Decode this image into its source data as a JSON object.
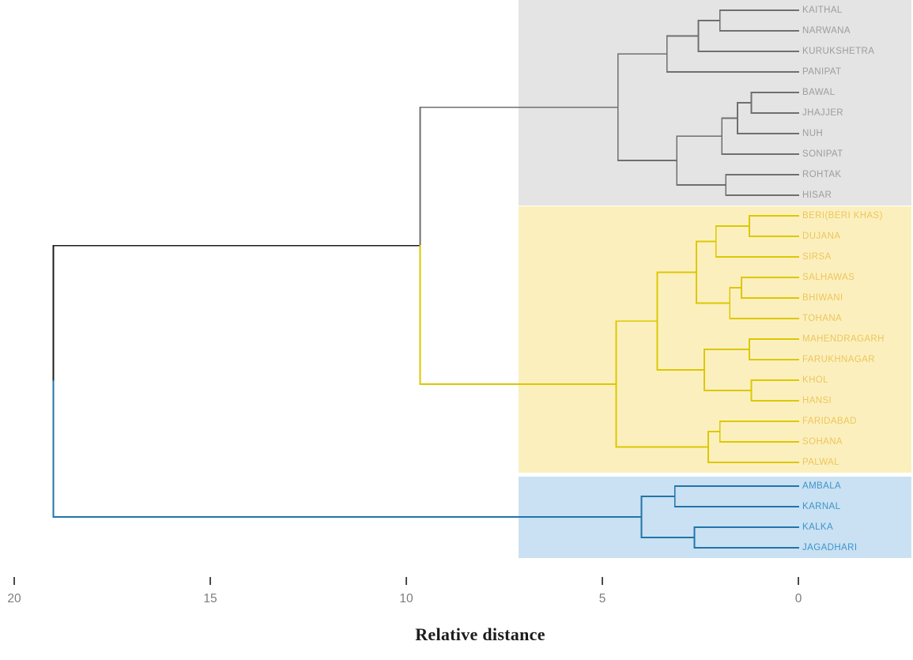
{
  "chart_data": {
    "type": "dendrogram",
    "title": "",
    "xlabel": "Relative distance",
    "axis": {
      "label": "Relative distance",
      "ticks": [
        20,
        15,
        10,
        5,
        0
      ],
      "direction": "reversed",
      "range": [
        20.3,
        0
      ],
      "tick_color": "#4a4a4a",
      "tick_label_color": "#7d7d7d"
    },
    "root_color": "#1c1c1c",
    "clusters": [
      {
        "name": "cluster-1-grey",
        "box_color": "#e4e4e4",
        "line_color": "#6f6f6f",
        "label_color": "#9d9d9d",
        "labels": [
          "KAITHAL",
          "NARWANA",
          "KURUKSHETRA",
          "PANIPAT",
          "BAWAL",
          "JHAJJER",
          "NUH",
          "SONIPAT",
          "ROHTAK",
          "HISAR"
        ]
      },
      {
        "name": "cluster-2-yellow",
        "box_color": "#fbf0bd",
        "line_color": "#ddc702",
        "label_color": "#eec45e",
        "labels": [
          "BERI(BERI KHAS)",
          "DUJANA",
          "SIRSA",
          "SALHAWAS",
          "BHIWANI",
          "TOHANA",
          "MAHENDRAGARH",
          "FARUKHNAGAR",
          "KHOL",
          "HANSI",
          "FARIDABAD",
          "SOHANA",
          "PALWAL"
        ]
      },
      {
        "name": "cluster-3-blue",
        "box_color": "#c9e1f2",
        "line_color": "#2274ab",
        "label_color": "#3f93cd",
        "labels": [
          "AMBALA",
          "KARNAL",
          "KALKA",
          "JAGADHARI"
        ]
      }
    ],
    "tree": {
      "d": 19.0,
      "color": "root",
      "c": [
        {
          "d": 9.65,
          "color": "root",
          "c": [
            {
              "d": 4.6,
              "cluster": 0,
              "c": [
                {
                  "d": 3.35,
                  "c": [
                    {
                      "d": 2.55,
                      "c": [
                        {
                          "d": 2.0,
                          "c": [
                            {
                              "l": "KAITHAL"
                            },
                            {
                              "l": "NARWANA"
                            }
                          ]
                        },
                        {
                          "l": "KURUKSHETRA"
                        }
                      ]
                    },
                    {
                      "l": "PANIPAT"
                    }
                  ]
                },
                {
                  "d": 3.1,
                  "c": [
                    {
                      "d": 1.95,
                      "c": [
                        {
                          "d": 1.55,
                          "c": [
                            {
                              "d": 1.2,
                              "c": [
                                {
                                  "l": "BAWAL"
                                },
                                {
                                  "l": "JHAJJER"
                                }
                              ]
                            },
                            {
                              "l": "NUH"
                            }
                          ]
                        },
                        {
                          "l": "SONIPAT"
                        }
                      ]
                    },
                    {
                      "d": 1.85,
                      "c": [
                        {
                          "l": "ROHTAK"
                        },
                        {
                          "l": "HISAR"
                        }
                      ]
                    }
                  ]
                }
              ]
            },
            {
              "d": 4.65,
              "cluster": 1,
              "c": [
                {
                  "d": 3.6,
                  "c": [
                    {
                      "d": 2.6,
                      "c": [
                        {
                          "d": 2.1,
                          "c": [
                            {
                              "d": 1.25,
                              "c": [
                                {
                                  "l": "BERI(BERI KHAS)"
                                },
                                {
                                  "l": "DUJANA"
                                }
                              ]
                            },
                            {
                              "l": "SIRSA"
                            }
                          ]
                        },
                        {
                          "d": 1.75,
                          "c": [
                            {
                              "d": 1.45,
                              "c": [
                                {
                                  "l": "SALHAWAS"
                                },
                                {
                                  "l": "BHIWANI"
                                }
                              ]
                            },
                            {
                              "l": "TOHANA"
                            }
                          ]
                        }
                      ]
                    },
                    {
                      "d": 2.4,
                      "c": [
                        {
                          "d": 1.25,
                          "c": [
                            {
                              "l": "MAHENDRAGARH"
                            },
                            {
                              "l": "FARUKHNAGAR"
                            }
                          ]
                        },
                        {
                          "d": 1.2,
                          "c": [
                            {
                              "l": "KHOL"
                            },
                            {
                              "l": "HANSI"
                            }
                          ]
                        }
                      ]
                    }
                  ]
                },
                {
                  "d": 2.3,
                  "c": [
                    {
                      "d": 2.0,
                      "c": [
                        {
                          "l": "FARIDABAD"
                        },
                        {
                          "l": "SOHANA"
                        }
                      ]
                    },
                    {
                      "l": "PALWAL"
                    }
                  ]
                }
              ]
            }
          ]
        },
        {
          "d": 4.0,
          "cluster": 2,
          "c": [
            {
              "d": 3.15,
              "c": [
                {
                  "l": "AMBALA"
                },
                {
                  "l": "KARNAL"
                }
              ]
            },
            {
              "d": 2.65,
              "c": [
                {
                  "l": "KALKA"
                },
                {
                  "l": "JAGADHARI"
                }
              ]
            }
          ]
        }
      ]
    }
  }
}
